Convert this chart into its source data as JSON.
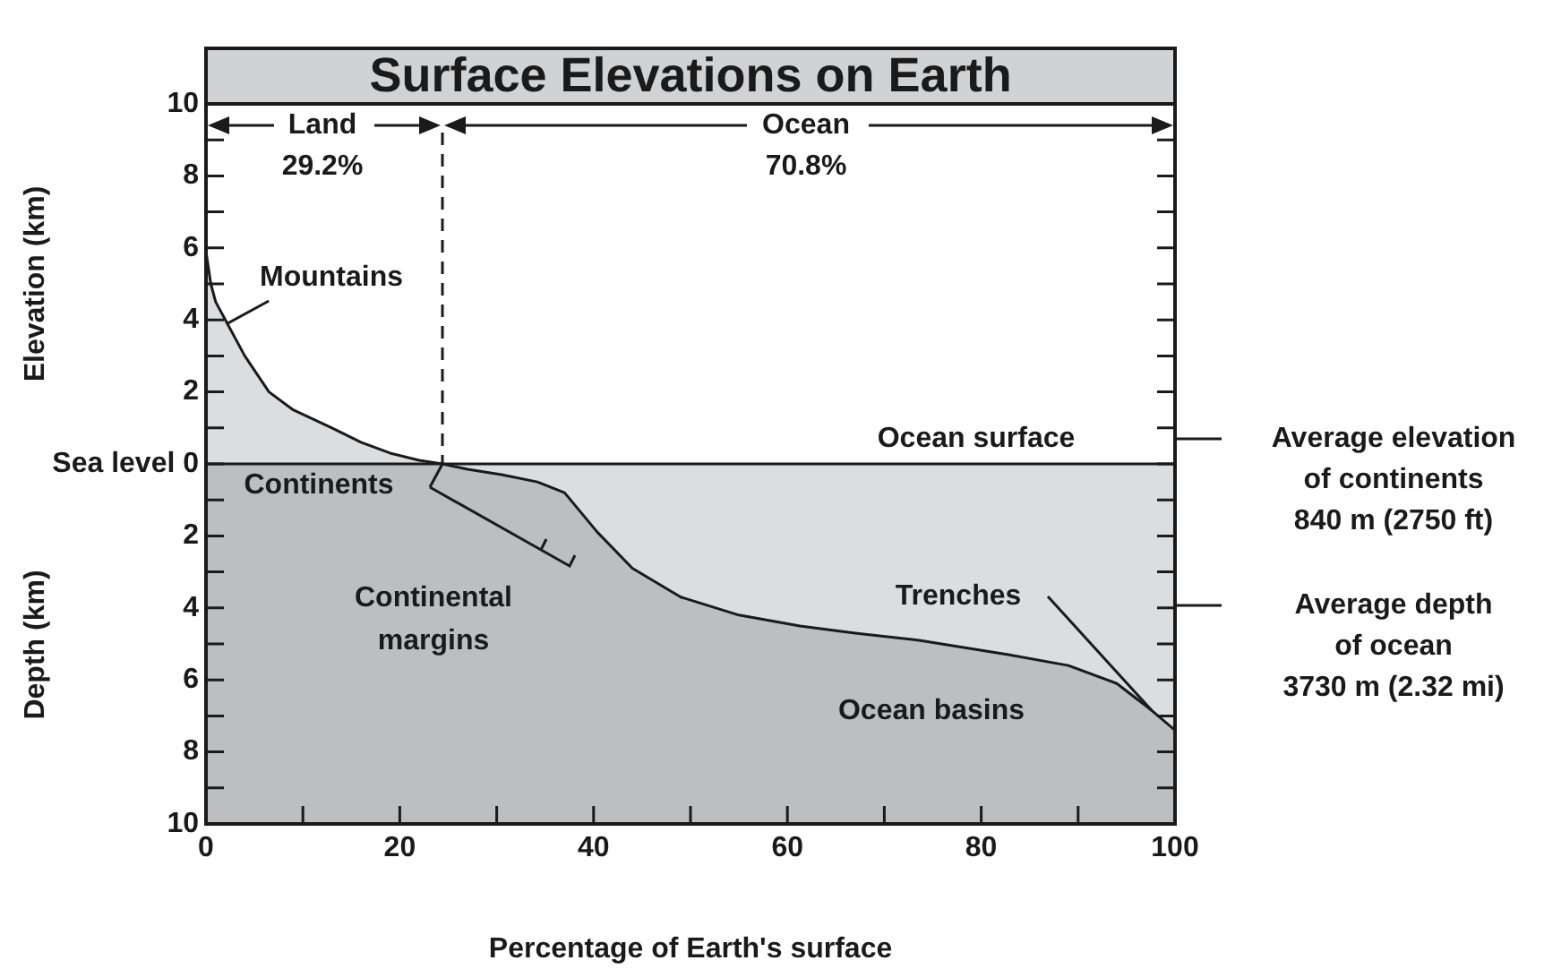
{
  "chart_data": {
    "type": "area",
    "title": "Surface Elevations on Earth",
    "xlabel": "Percentage of Earth's surface",
    "ylabel": "Elevation (km)",
    "series": [
      {
        "color": "#dcdddf",
        "x": [
          0,
          0.5,
          1,
          2.2,
          4,
          6.5,
          9,
          13,
          16,
          19,
          22,
          24.4,
          27,
          30.5,
          34.2,
          37,
          40.4,
          44,
          49,
          55,
          61.3,
          67,
          73.6,
          82.8,
          89,
          94,
          97.6,
          100
        ],
        "values": [
          5.9,
          5.0,
          4.5,
          3.9,
          3.0,
          2.0,
          1.5,
          1.0,
          0.6,
          0.3,
          0.1,
          0,
          -0.15,
          -0.3,
          -0.5,
          -0.8,
          -1.9,
          -2.9,
          -3.7,
          -4.2,
          -4.5,
          -4.7,
          -4.9,
          -5.3,
          -5.6,
          -6.1,
          -6.85,
          -7.4
        ]
      }
    ],
    "xlim": [
      0,
      100
    ],
    "ylim": [
      -10,
      10
    ],
    "xticks": [
      0,
      {
        "value": 10,
        "label": null
      },
      20,
      {
        "value": 30,
        "label": null
      },
      40,
      {
        "value": 50,
        "label": null
      },
      60,
      {
        "value": 70,
        "label": null
      },
      80,
      {
        "value": 90,
        "label": null
      },
      100
    ],
    "yticks": [
      {
        "value": -10,
        "label": "10"
      },
      {
        "value": -9,
        "label": null
      },
      {
        "value": -8,
        "label": "8"
      },
      {
        "value": -7,
        "label": null
      },
      {
        "value": -6,
        "label": "6"
      },
      {
        "value": -5,
        "label": null
      },
      {
        "value": -4,
        "label": "4"
      },
      {
        "value": -3,
        "label": null
      },
      {
        "value": -2,
        "label": "2"
      },
      {
        "value": -1,
        "label": null
      },
      {
        "value": 0,
        "label": "Sea level 0"
      },
      {
        "value": 1,
        "label": null
      },
      2,
      {
        "value": 3,
        "label": null
      },
      4,
      {
        "value": 5,
        "label": null
      },
      6,
      {
        "value": 7,
        "label": null
      },
      8,
      {
        "value": 9,
        "label": null
      },
      10
    ],
    "bands": [
      {
        "axis": "y",
        "from": -10,
        "to": 0,
        "color": "#bdbec0"
      }
    ],
    "ref_lines": [
      {
        "axis": "x",
        "value": 24.4,
        "line_style": "dashed"
      }
    ],
    "annotations": [
      "Depth (km)",
      {
        "text": "Land",
        "x": 24.4,
        "y": 9.4
      },
      "29.2%",
      {
        "text": "Ocean",
        "x": 24.4,
        "y": 9.4
      },
      "70.8%",
      {
        "text": "Mountains",
        "x": 2.2,
        "y": 3.9
      },
      {
        "text": "Continents",
        "x": 24.4,
        "y": 0
      },
      "Continental\nmargins",
      "Ocean surface",
      {
        "text": "Trenches",
        "x": 97.6,
        "y": -6.85
      },
      "Ocean basins",
      "Average elevation\nof continents\n840 m (2750 ft)",
      "Average depth\nof ocean\n3730 m (2.32 mi)"
    ],
    "legend": false
  }
}
